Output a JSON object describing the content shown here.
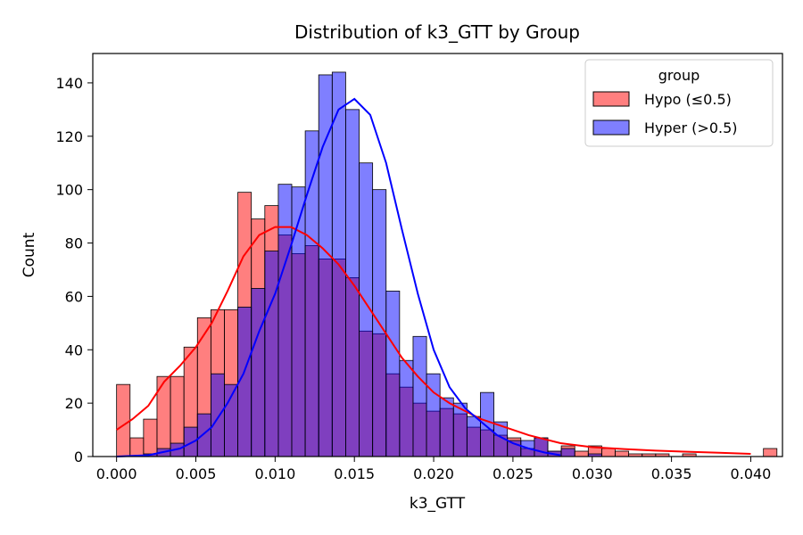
{
  "chart_data": {
    "type": "histogram",
    "title": "Distribution of k3_GTT by Group",
    "xlabel": "k3_GTT",
    "ylabel": "Count",
    "xlim": [
      -0.0015,
      0.042
    ],
    "ylim": [
      0,
      151
    ],
    "bin_start": 0.0,
    "bin_width": 0.00085,
    "xticks": [
      0.0,
      0.005,
      0.01,
      0.015,
      0.02,
      0.025,
      0.03,
      0.035,
      0.04
    ],
    "xtick_labels": [
      "0.000",
      "0.005",
      "0.010",
      "0.015",
      "0.020",
      "0.025",
      "0.030",
      "0.035",
      "0.040"
    ],
    "yticks": [
      0,
      20,
      40,
      60,
      80,
      100,
      120,
      140
    ],
    "yticks_labels": [
      "0",
      "20",
      "40",
      "60",
      "80",
      "100",
      "120",
      "140"
    ],
    "grid": false,
    "legend": {
      "title": "group",
      "placement": "top-right"
    },
    "series": [
      {
        "name": "Hypo (≤0.5)",
        "color": "#ff0000",
        "counts": [
          27,
          7,
          14,
          30,
          30,
          41,
          52,
          55,
          55,
          99,
          89,
          94,
          83,
          76,
          79,
          74,
          74,
          67,
          47,
          46,
          31,
          26,
          20,
          17,
          18,
          16,
          11,
          10,
          8,
          7,
          3,
          7,
          2,
          4,
          2,
          4,
          3,
          2,
          1,
          1,
          1,
          0,
          1,
          0,
          0,
          0,
          0,
          0,
          3
        ],
        "kde_x": [
          0.0,
          0.001,
          0.002,
          0.003,
          0.004,
          0.005,
          0.006,
          0.007,
          0.008,
          0.009,
          0.01,
          0.011,
          0.012,
          0.013,
          0.014,
          0.015,
          0.016,
          0.017,
          0.018,
          0.019,
          0.02,
          0.021,
          0.022,
          0.023,
          0.024,
          0.025,
          0.026,
          0.027,
          0.028,
          0.03,
          0.032,
          0.034,
          0.036,
          0.038,
          0.04
        ],
        "kde_y": [
          10,
          14,
          19,
          28,
          34,
          41,
          50,
          62,
          75,
          83,
          86,
          86,
          83,
          78,
          72,
          64,
          55,
          46,
          37,
          30,
          24,
          20,
          17,
          14,
          12,
          10,
          8,
          6.5,
          5,
          3.5,
          2.8,
          2.2,
          1.8,
          1.4,
          1
        ]
      },
      {
        "name": "Hyper (>0.5)",
        "color": "#0000ff",
        "counts": [
          0,
          0,
          1,
          3,
          5,
          11,
          16,
          31,
          27,
          56,
          63,
          77,
          102,
          101,
          122,
          143,
          144,
          130,
          110,
          100,
          62,
          36,
          45,
          31,
          22,
          20,
          15,
          24,
          13,
          6,
          6,
          7,
          2,
          3,
          0,
          1,
          0,
          0,
          0,
          0,
          0,
          0,
          0,
          0,
          0,
          0,
          0,
          0,
          0
        ],
        "kde_x": [
          0.0,
          0.002,
          0.004,
          0.005,
          0.006,
          0.007,
          0.008,
          0.009,
          0.01,
          0.011,
          0.012,
          0.013,
          0.014,
          0.015,
          0.016,
          0.017,
          0.018,
          0.019,
          0.02,
          0.021,
          0.022,
          0.023,
          0.024,
          0.025,
          0.026,
          0.027,
          0.028
        ],
        "kde_y": [
          0,
          0.5,
          3,
          6,
          11,
          20,
          31,
          47,
          61,
          79,
          98,
          116,
          130,
          134,
          128,
          110,
          85,
          61,
          40,
          26,
          18,
          13,
          8,
          5,
          3,
          1.5,
          0.5
        ]
      }
    ]
  }
}
